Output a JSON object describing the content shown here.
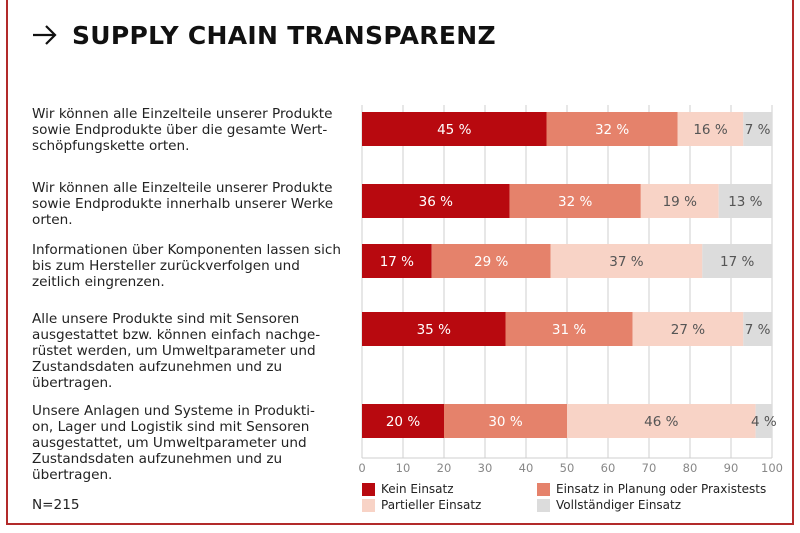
{
  "header": {
    "title": "SUPPLY CHAIN TRANSPARENZ",
    "arrow_icon": "arrow-right-icon"
  },
  "note": "N=215",
  "colors": {
    "kein": "#b8090f",
    "planung": "#e5826b",
    "partiell": "#f8d3c6",
    "vollstaendig": "#dcdcdc",
    "frame": "#b22a2a"
  },
  "chart_data": {
    "type": "bar",
    "orientation": "horizontal",
    "stacked": true,
    "title": "SUPPLY CHAIN TRANSPARENZ",
    "categories": [
      "Wir können alle Einzelteile unserer Produkte sowie Endprodukte über die gesamte Wert-schöpfungskette orten.",
      "Wir können alle Einzelteile unserer Produkte sowie Endprodukte innerhalb unserer Werke orten.",
      "Informationen über Komponenten lassen sich bis zum Hersteller zurückverfolgen und zeitlich eingrenzen.",
      "Alle unsere Produkte sind mit Sensoren ausgestattet bzw. können einfach nachge-rüstet werden, um Umweltparameter und Zustandsdaten aufzunehmen und zu übertragen.",
      "Unsere Anlagen und Systeme in Produkti-on, Lager und Logistik sind mit Sensoren ausgestattet, um Umweltparameter und Zustandsdaten aufzunehmen und zu übertragen."
    ],
    "category_lines": [
      [
        "Wir können alle Einzelteile unserer Produkte",
        "sowie Endprodukte über die gesamte Wert-",
        "schöpfungskette orten."
      ],
      [
        "Wir können alle Einzelteile unserer Produkte",
        "sowie Endprodukte innerhalb unserer Werke",
        "orten."
      ],
      [
        "Informationen über Komponenten lassen sich",
        "bis zum Hersteller zurückverfolgen und",
        "zeitlich eingrenzen."
      ],
      [
        "Alle unsere Produkte sind mit Sensoren",
        "ausgestattet bzw. können einfach nachge-",
        "rüstet werden, um Umweltparameter und",
        "Zustandsdaten aufzunehmen und zu",
        "übertragen."
      ],
      [
        "Unsere Anlagen und Systeme in Produkti-",
        "on, Lager und Logistik sind mit Sensoren",
        "ausgestattet, um Umweltparameter und",
        "Zustandsdaten aufzunehmen und zu",
        "übertragen."
      ]
    ],
    "series": [
      {
        "name": "Kein Einsatz",
        "color_key": "kein",
        "values": [
          45,
          36,
          17,
          35,
          20
        ],
        "labels": [
          "45 %",
          "36 %",
          "17 %",
          "35 %",
          "20 %"
        ]
      },
      {
        "name": "Einsatz in Planung oder Praxistests",
        "color_key": "planung",
        "values": [
          32,
          32,
          29,
          31,
          30
        ],
        "labels": [
          "32 %",
          "32 %",
          "29 %",
          "31 %",
          "30 %"
        ]
      },
      {
        "name": "Partieller Einsatz",
        "color_key": "partiell",
        "values": [
          16,
          19,
          37,
          27,
          46
        ],
        "labels": [
          "16 %",
          "19 %",
          "37 %",
          "27 %",
          "46 %"
        ]
      },
      {
        "name": "Vollständiger Einsatz",
        "color_key": "vollstaendig",
        "values": [
          7,
          13,
          17,
          7,
          4
        ],
        "labels": [
          "7 %",
          "13 %",
          "17 %",
          "7 %",
          "4 %"
        ]
      }
    ],
    "xlim": [
      0,
      100
    ],
    "xticks": [
      "0",
      "10",
      "20",
      "30",
      "40",
      "50",
      "60",
      "70",
      "80",
      "90",
      "100"
    ],
    "grid": true,
    "legend_position": "bottom"
  }
}
